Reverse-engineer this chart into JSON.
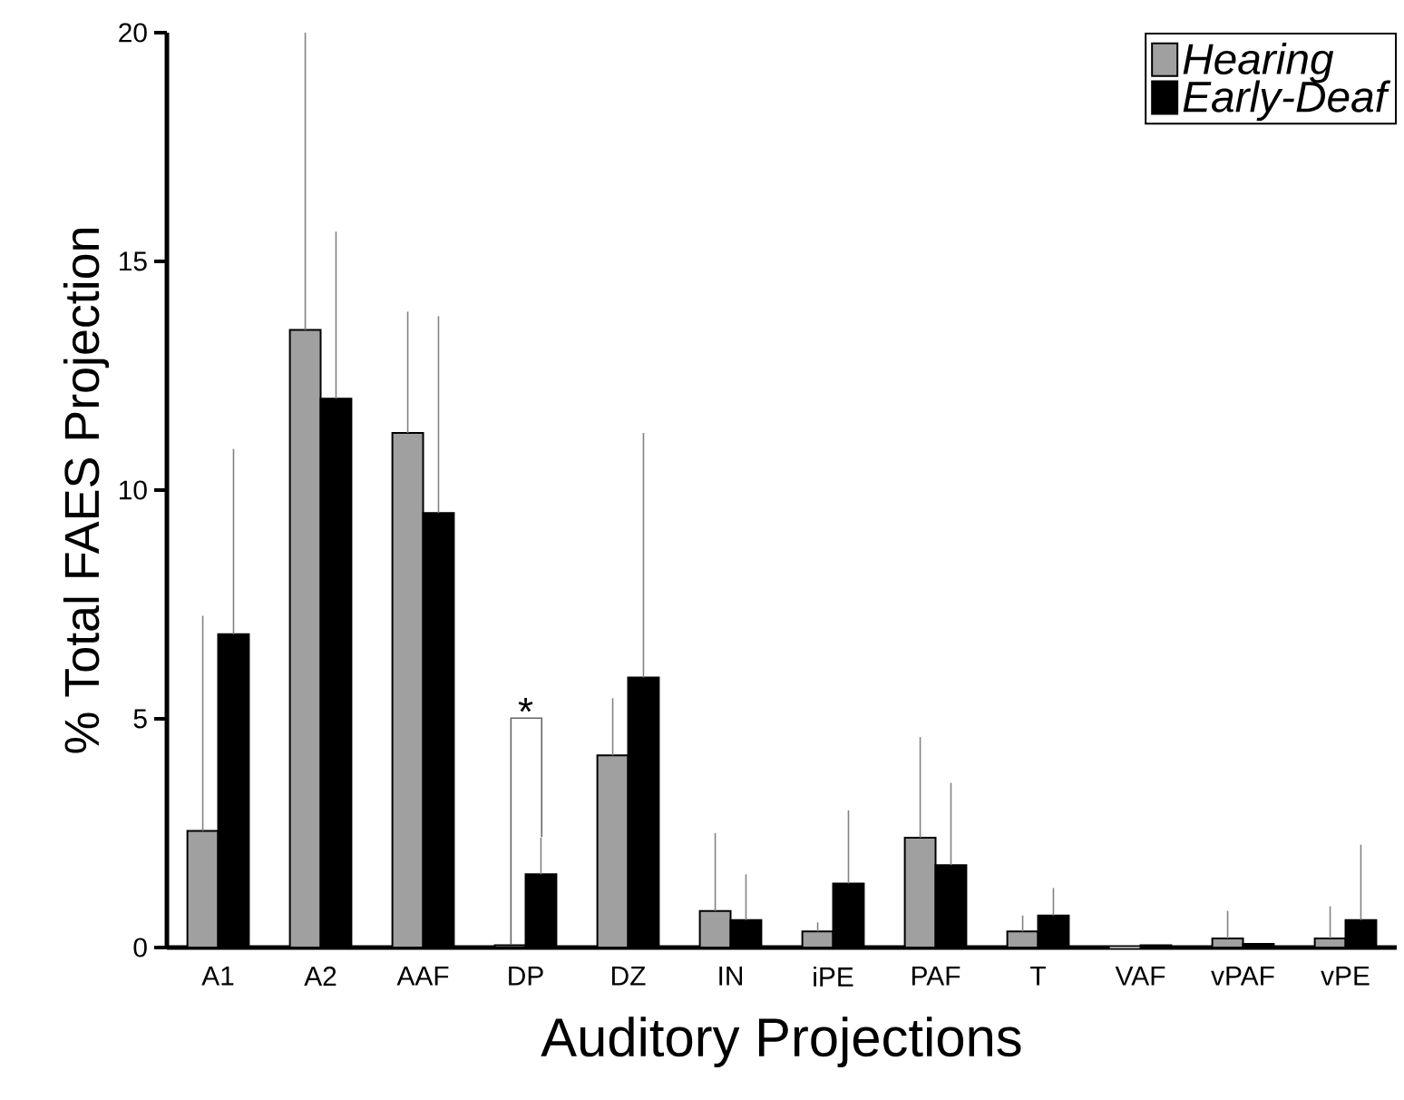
{
  "chart_data": {
    "type": "bar",
    "xlabel": "Auditory Projections",
    "ylabel": "% Total FAES Projection",
    "categories": [
      "A1",
      "A2",
      "AAF",
      "DP",
      "DZ",
      "IN",
      "iPE",
      "PAF",
      "T",
      "VAF",
      "vPAF",
      "vPE"
    ],
    "series": [
      {
        "name": "Hearing",
        "color": "#a0a0a0",
        "values": [
          2.55,
          13.5,
          11.25,
          0.05,
          4.2,
          0.8,
          0.35,
          2.4,
          0.35,
          0,
          0.2,
          0.2
        ],
        "errors": [
          [
            2.55,
            7.25
          ],
          [
            13.5,
            20
          ],
          [
            11.25,
            13.9
          ],
          null,
          [
            4.2,
            5.45
          ],
          [
            0.8,
            2.5
          ],
          [
            0.35,
            0.55
          ],
          [
            2.4,
            4.6
          ],
          [
            0.35,
            0.7
          ],
          null,
          [
            0.2,
            0.8
          ],
          [
            0.2,
            0.9
          ]
        ]
      },
      {
        "name": "Early-Deaf",
        "color": "#000000",
        "values": [
          6.85,
          12.0,
          9.5,
          1.6,
          5.9,
          0.6,
          1.4,
          1.8,
          0.7,
          0.05,
          0.08,
          0.6
        ],
        "errors": [
          [
            6.85,
            10.9
          ],
          [
            12.0,
            15.65
          ],
          [
            9.5,
            13.8
          ],
          [
            1.6,
            2.4
          ],
          [
            5.9,
            11.25
          ],
          [
            0.6,
            1.6
          ],
          [
            1.4,
            3.0
          ],
          [
            1.8,
            3.6
          ],
          [
            0.7,
            1.3
          ],
          null,
          null,
          [
            0.6,
            2.25
          ]
        ]
      }
    ],
    "ylim": [
      0,
      20
    ],
    "yticks": [
      0,
      5,
      10,
      15,
      20
    ],
    "grid": false,
    "legend": "top right",
    "annotations": [
      "*"
    ]
  }
}
